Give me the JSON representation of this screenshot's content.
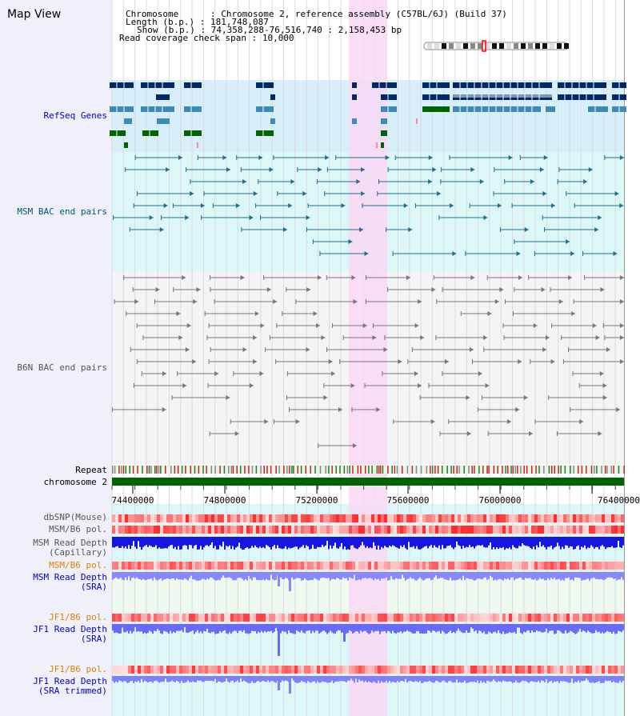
{
  "header": {
    "title": "Map View",
    "chromosome_label": "Chromosome",
    "chromosome_value": "Chromosome 2, reference assembly (C57BL/6J) (Build 37)",
    "length_label": "Length (b.p.)",
    "length_value": "181,748,087",
    "show_label": "Show (b.p.)",
    "show_value": "74,358,288-76,516,740 : 2,158,453 bp",
    "coverage_label": "Read coverage check span",
    "coverage_value": "10,000"
  },
  "tracks": {
    "refseq": "RefSeq Genes",
    "msm_bac": "MSM BAC end pairs",
    "b6n_bac": "B6N BAC end pairs",
    "repeat": "Repeat",
    "chromosome": "chromosome 2",
    "dbsnp": "dbSNP(Mouse)",
    "msm_b6_pol_1": "MSM/B6 pol.",
    "msm_depth_cap_1": "MSM Read Depth",
    "msm_depth_cap_2": "(Capillary)",
    "msm_b6_pol_2": "MSM/B6 pol.",
    "msm_depth_sra_1": "MSM Read Depth",
    "msm_depth_sra_2": "(SRA)",
    "jf1_b6_pol_1": "JF1/B6 pol.",
    "jf1_depth_sra_1": "JF1 Read Depth",
    "jf1_depth_sra_2": "(SRA)",
    "jf1_b6_pol_2": "JF1/B6 pol.",
    "jf1_depth_trim_1": "JF1 Read Depth",
    "jf1_depth_trim_2": "(SRA trimmed)"
  },
  "axis": {
    "ticks": [
      "74400000",
      "74800000",
      "75200000",
      "75600000",
      "76000000",
      "76400000"
    ]
  },
  "colors": {
    "highlight": "#f8d8f4",
    "refseq_bg": "#d8eef8",
    "msm_bg": "#ddf7f7",
    "b6n_bg": "#f4f4f4",
    "gene_dark": "#002a66",
    "gene_mid": "#3b8ab8",
    "gene_green": "#006400",
    "chromosome_green": "#006400",
    "depth_blue": "#1a1ae6",
    "depth_light": "#8080ff",
    "label_blue": "#0000cc",
    "label_orange": "#e08000"
  }
}
